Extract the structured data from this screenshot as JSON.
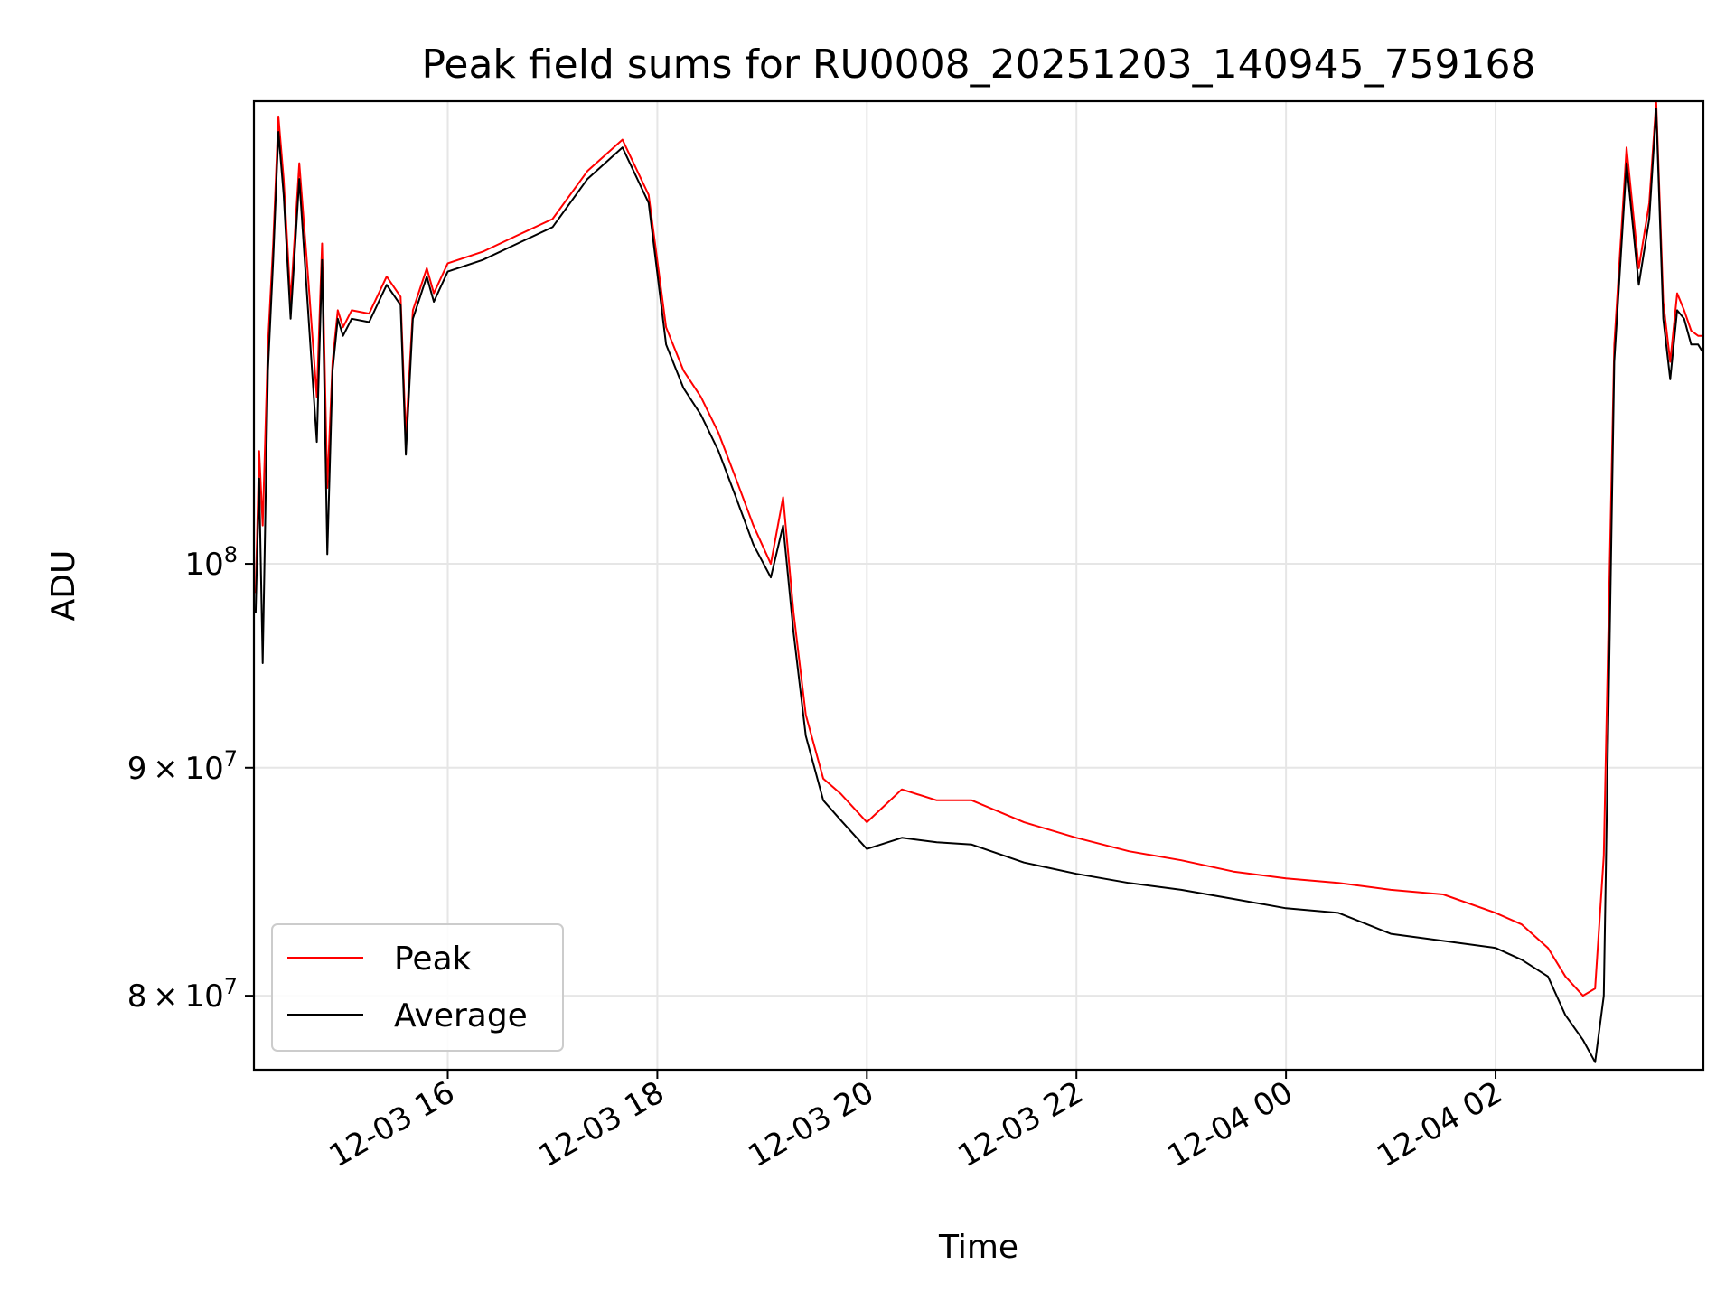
{
  "chart_data": {
    "type": "line",
    "title": "Peak field sums for RU0008_20251203_140945_759168",
    "xlabel": "Time",
    "ylabel": "ADU",
    "yscale": "log",
    "grid": true,
    "legend_position": "lower-left",
    "x_range": [
      "2025-12-03 14:09",
      "2025-12-04 03:59"
    ],
    "y_range": [
      77000000,
      127000000
    ],
    "x_ticks": [
      {
        "t": "2025-12-03 16:00",
        "label": "12-03 16"
      },
      {
        "t": "2025-12-03 18:00",
        "label": "12-03 18"
      },
      {
        "t": "2025-12-03 20:00",
        "label": "12-03 20"
      },
      {
        "t": "2025-12-03 22:00",
        "label": "12-03 22"
      },
      {
        "t": "2025-12-04 00:00",
        "label": "12-04 00"
      },
      {
        "t": "2025-12-04 02:00",
        "label": "12-04 02"
      }
    ],
    "y_ticks": [
      {
        "value": 80000000,
        "mant": "8",
        "exp": "7"
      },
      {
        "value": 90000000,
        "mant": "9",
        "exp": "7"
      },
      {
        "value": 100000000,
        "mant": "",
        "exp": "8"
      }
    ],
    "series": [
      {
        "name": "Peak",
        "color": "#ff0000",
        "x": [
          "2025-12-03 14:10",
          "2025-12-03 14:12",
          "2025-12-03 14:14",
          "2025-12-03 14:17",
          "2025-12-03 14:20",
          "2025-12-03 14:23",
          "2025-12-03 14:26",
          "2025-12-03 14:30",
          "2025-12-03 14:35",
          "2025-12-03 14:40",
          "2025-12-03 14:45",
          "2025-12-03 14:48",
          "2025-12-03 14:51",
          "2025-12-03 14:54",
          "2025-12-03 14:57",
          "2025-12-03 15:00",
          "2025-12-03 15:05",
          "2025-12-03 15:15",
          "2025-12-03 15:25",
          "2025-12-03 15:33",
          "2025-12-03 15:36",
          "2025-12-03 15:40",
          "2025-12-03 15:48",
          "2025-12-03 15:52",
          "2025-12-03 16:00",
          "2025-12-03 16:20",
          "2025-12-03 16:40",
          "2025-12-03 17:00",
          "2025-12-03 17:20",
          "2025-12-03 17:40",
          "2025-12-03 17:55",
          "2025-12-03 18:05",
          "2025-12-03 18:15",
          "2025-12-03 18:25",
          "2025-12-03 18:35",
          "2025-12-03 18:45",
          "2025-12-03 18:55",
          "2025-12-03 19:05",
          "2025-12-03 19:12",
          "2025-12-03 19:18",
          "2025-12-03 19:25",
          "2025-12-03 19:35",
          "2025-12-03 19:45",
          "2025-12-03 20:00",
          "2025-12-03 20:20",
          "2025-12-03 20:40",
          "2025-12-03 21:00",
          "2025-12-03 21:30",
          "2025-12-03 22:00",
          "2025-12-03 22:30",
          "2025-12-03 23:00",
          "2025-12-03 23:30",
          "2025-12-04 00:00",
          "2025-12-04 00:30",
          "2025-12-04 01:00",
          "2025-12-04 01:30",
          "2025-12-04 02:00",
          "2025-12-04 02:15",
          "2025-12-04 02:30",
          "2025-12-04 02:40",
          "2025-12-04 02:50",
          "2025-12-04 02:57",
          "2025-12-04 03:02",
          "2025-12-04 03:08",
          "2025-12-04 03:15",
          "2025-12-04 03:22",
          "2025-12-04 03:28",
          "2025-12-04 03:32",
          "2025-12-04 03:36",
          "2025-12-04 03:40",
          "2025-12-04 03:44",
          "2025-12-04 03:48",
          "2025-12-04 03:52",
          "2025-12-04 03:56",
          "2025-12-04 03:59"
        ],
        "values": [
          98500000,
          106000000,
          102000000,
          112000000,
          118000000,
          126000000,
          122000000,
          114500000,
          123000000,
          116000000,
          109000000,
          118000000,
          104000000,
          111000000,
          114000000,
          113000000,
          114000000,
          113800000,
          116000000,
          114800000,
          106800000,
          114000000,
          116500000,
          115000000,
          116800000,
          117500000,
          118500000,
          119500000,
          122500000,
          124500000,
          121000000,
          113000000,
          110500000,
          109000000,
          107000000,
          104500000,
          102000000,
          100000000,
          103500000,
          97500000,
          92500000,
          89500000,
          88800000,
          87500000,
          89000000,
          88500000,
          88500000,
          87500000,
          86800000,
          86200000,
          85800000,
          85300000,
          85000000,
          84800000,
          84500000,
          84300000,
          83500000,
          83000000,
          82000000,
          80800000,
          80000000,
          80300000,
          86000000,
          112000000,
          124000000,
          116500000,
          120500000,
          127000000,
          114500000,
          111000000,
          115000000,
          114000000,
          112800000,
          112500000,
          112500000
        ]
      },
      {
        "name": "Average",
        "color": "#000000",
        "x": [
          "2025-12-03 14:10",
          "2025-12-03 14:12",
          "2025-12-03 14:14",
          "2025-12-03 14:17",
          "2025-12-03 14:20",
          "2025-12-03 14:23",
          "2025-12-03 14:26",
          "2025-12-03 14:30",
          "2025-12-03 14:35",
          "2025-12-03 14:40",
          "2025-12-03 14:45",
          "2025-12-03 14:48",
          "2025-12-03 14:51",
          "2025-12-03 14:54",
          "2025-12-03 14:57",
          "2025-12-03 15:00",
          "2025-12-03 15:05",
          "2025-12-03 15:15",
          "2025-12-03 15:25",
          "2025-12-03 15:33",
          "2025-12-03 15:36",
          "2025-12-03 15:40",
          "2025-12-03 15:48",
          "2025-12-03 15:52",
          "2025-12-03 16:00",
          "2025-12-03 16:20",
          "2025-12-03 16:40",
          "2025-12-03 17:00",
          "2025-12-03 17:20",
          "2025-12-03 17:40",
          "2025-12-03 17:55",
          "2025-12-03 18:05",
          "2025-12-03 18:15",
          "2025-12-03 18:25",
          "2025-12-03 18:35",
          "2025-12-03 18:45",
          "2025-12-03 18:55",
          "2025-12-03 19:05",
          "2025-12-03 19:12",
          "2025-12-03 19:18",
          "2025-12-03 19:25",
          "2025-12-03 19:35",
          "2025-12-03 19:45",
          "2025-12-03 20:00",
          "2025-12-03 20:20",
          "2025-12-03 20:40",
          "2025-12-03 21:00",
          "2025-12-03 21:30",
          "2025-12-03 22:00",
          "2025-12-03 22:30",
          "2025-12-03 23:00",
          "2025-12-03 23:30",
          "2025-12-04 00:00",
          "2025-12-04 00:30",
          "2025-12-04 01:00",
          "2025-12-04 01:30",
          "2025-12-04 02:00",
          "2025-12-04 02:15",
          "2025-12-04 02:30",
          "2025-12-04 02:40",
          "2025-12-04 02:50",
          "2025-12-04 02:57",
          "2025-12-04 03:02",
          "2025-12-04 03:08",
          "2025-12-04 03:15",
          "2025-12-04 03:22",
          "2025-12-04 03:28",
          "2025-12-04 03:32",
          "2025-12-04 03:36",
          "2025-12-04 03:40",
          "2025-12-04 03:44",
          "2025-12-04 03:48",
          "2025-12-04 03:52",
          "2025-12-04 03:56",
          "2025-12-04 03:59"
        ],
        "values": [
          97500000,
          104500000,
          95000000,
          110500000,
          117000000,
          125000000,
          121000000,
          113500000,
          122000000,
          114000000,
          106500000,
          117000000,
          100500000,
          110500000,
          113500000,
          112500000,
          113500000,
          113300000,
          115500000,
          114300000,
          105800000,
          113500000,
          116000000,
          114500000,
          116300000,
          117000000,
          118000000,
          119000000,
          122000000,
          124000000,
          120500000,
          112000000,
          109500000,
          108000000,
          106000000,
          103500000,
          101000000,
          99300000,
          102000000,
          96500000,
          91500000,
          88500000,
          87600000,
          86300000,
          86800000,
          86600000,
          86500000,
          85700000,
          85200000,
          84800000,
          84500000,
          84100000,
          83700000,
          83500000,
          82600000,
          82300000,
          82000000,
          81500000,
          80800000,
          79200000,
          78200000,
          77300000,
          80000000,
          111000000,
          123000000,
          115500000,
          119500000,
          126500000,
          113500000,
          110000000,
          114000000,
          113500000,
          112000000,
          112000000,
          111500000
        ]
      }
    ]
  }
}
